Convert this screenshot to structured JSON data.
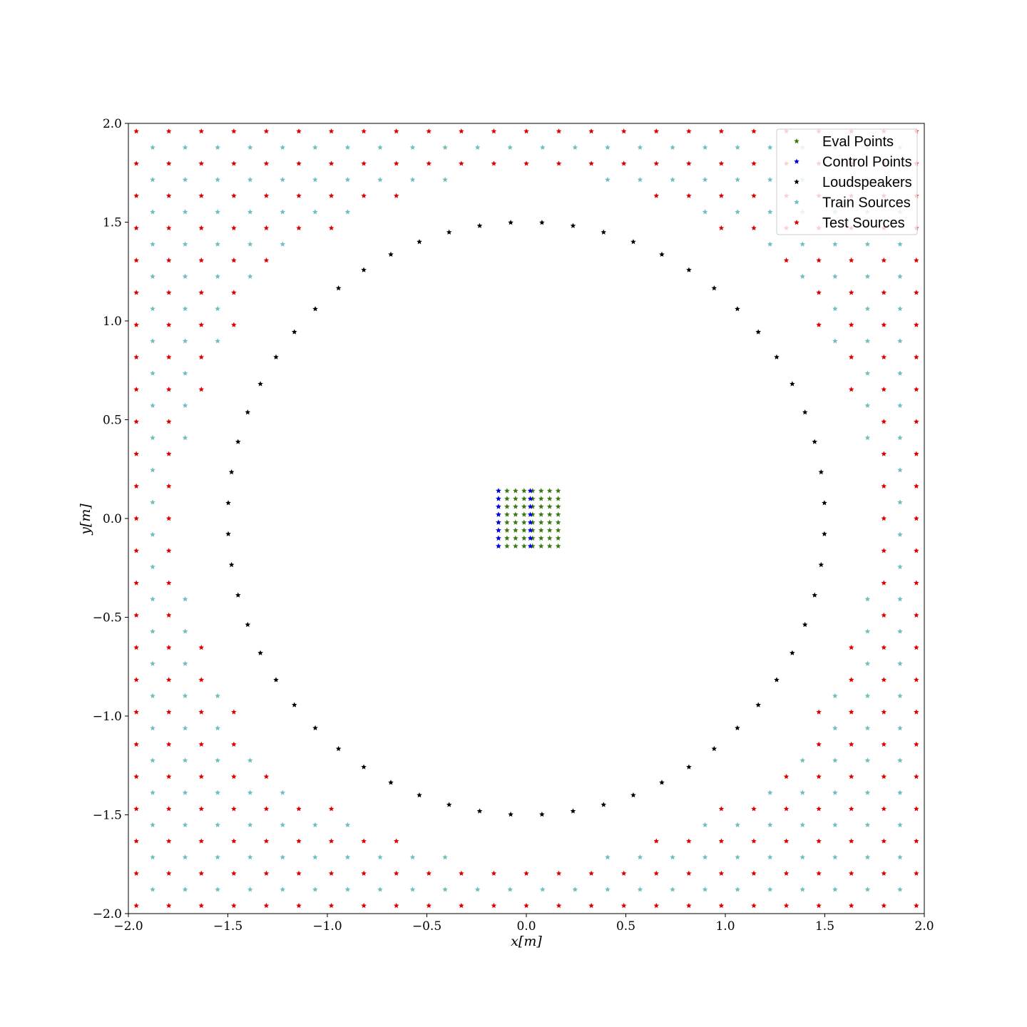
{
  "chart_data": {
    "type": "scatter",
    "xlabel": "x[m]",
    "ylabel": "y[m]",
    "xlim": [
      -2.0,
      2.0
    ],
    "ylim": [
      -2.0,
      2.0
    ],
    "xticks": [
      -2.0,
      -1.5,
      -1.0,
      -0.5,
      0.0,
      0.5,
      1.0,
      1.5,
      2.0
    ],
    "yticks": [
      -2.0,
      -1.5,
      -1.0,
      -0.5,
      0.0,
      0.5,
      1.0,
      1.5,
      2.0
    ],
    "xtick_labels": [
      "−2.0",
      "−1.5",
      "−1.0",
      "−0.5",
      "0.0",
      "0.5",
      "1.0",
      "1.5",
      "2.0"
    ],
    "ytick_labels": [
      "−2.0",
      "−1.5",
      "−1.0",
      "−0.5",
      "0.0",
      "0.5",
      "1.0",
      "1.5",
      "2.0"
    ],
    "grid": false,
    "legend_position": "top-right",
    "marker": "star",
    "series": [
      {
        "name": "Eval Points",
        "color": "#3a7a10",
        "grid": {
          "xmin": -0.14,
          "xmax": 0.16,
          "ymin": -0.14,
          "ymax": 0.14,
          "nx": 8,
          "ny": 8
        }
      },
      {
        "name": "Control Points",
        "color": "#0000ee",
        "x": [
          -0.14,
          -0.14,
          -0.14,
          -0.14,
          -0.14,
          -0.14,
          -0.14,
          -0.14,
          0.02,
          0.02,
          0.02,
          0.02,
          0.02,
          0.02,
          0.02,
          0.02
        ],
        "y": [
          -0.14,
          -0.1,
          -0.06,
          -0.02,
          0.02,
          0.06,
          0.1,
          0.14,
          -0.14,
          -0.1,
          -0.06,
          -0.02,
          0.02,
          0.06,
          0.1,
          0.14
        ]
      },
      {
        "name": "Loudspeakers",
        "color": "#000000",
        "circle": {
          "radius": 1.5,
          "count": 60,
          "start_angle_deg": 3
        }
      },
      {
        "name": "Train Sources",
        "color": "#6fbfbf",
        "grid": {
          "xmin": -1.878,
          "xmax": 1.878,
          "ymin": -1.878,
          "ymax": 1.878,
          "step": 0.163
        },
        "inner_radius": 1.75
      },
      {
        "name": "Test Sources",
        "color": "#dd0000",
        "grid": {
          "xmin": -1.96,
          "xmax": 1.96,
          "ymin": -1.96,
          "ymax": 1.96,
          "step": 0.163
        },
        "inner_radius": 1.75
      }
    ]
  }
}
